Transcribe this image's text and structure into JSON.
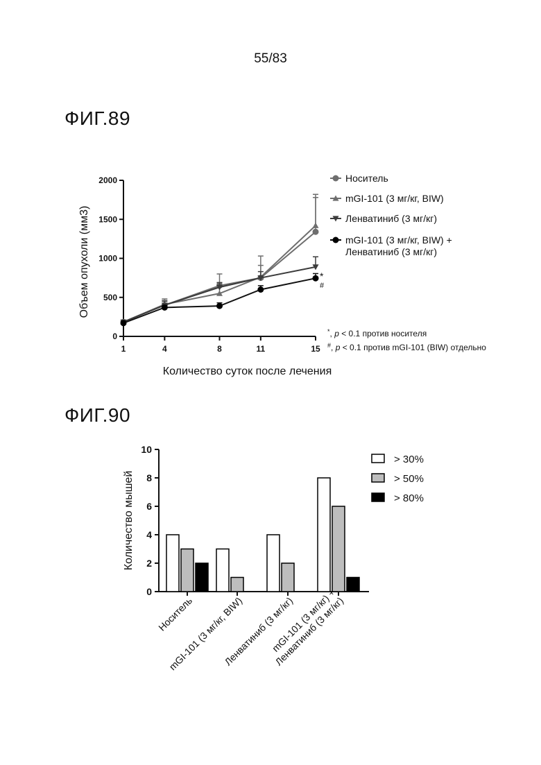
{
  "page_number": "55/83",
  "figures": {
    "fig89": {
      "label": "ФИГ.89"
    },
    "fig90": {
      "label": "ФИГ.90"
    }
  },
  "chart_data": [
    {
      "type": "line",
      "x": [
        1,
        4,
        8,
        11,
        15
      ],
      "xlabel": "Количество суток после лечения",
      "ylabel": "Объем опухоли (мм3)",
      "ylim": [
        0,
        2000
      ],
      "yticks": [
        0,
        500,
        1000,
        1500,
        2000
      ],
      "series": [
        {
          "name": "Носитель",
          "marker": "circle",
          "color": "#6e6e6e",
          "values": [
            185,
            400,
            650,
            750,
            1340
          ],
          "errors": [
            20,
            60,
            150,
            280,
            440
          ]
        },
        {
          "name": "mGI-101 (3 мг/кг, BIW)",
          "marker": "triangle-up",
          "color": "#6e6e6e",
          "values": [
            185,
            410,
            550,
            760,
            1420
          ],
          "errors": [
            20,
            70,
            130,
            150,
            400
          ]
        },
        {
          "name": "Ленватиниб (3 мг/кг)",
          "marker": "triangle-down",
          "color": "#3c3c3c",
          "values": [
            185,
            400,
            630,
            750,
            890
          ],
          "errors": [
            20,
            50,
            60,
            80,
            130
          ]
        },
        {
          "name": "mGI-101 (3 мг/кг, BIW) + Ленватиниб (3 мг/кг)",
          "legend_lines": [
            "mGI-101 (3 мг/кг, BIW) +",
            "Ленватиниб (3 мг/кг)"
          ],
          "marker": "circle-black",
          "color": "#111111",
          "values": [
            170,
            370,
            390,
            600,
            745
          ],
          "errors": [
            20,
            30,
            40,
            50,
            60
          ]
        }
      ],
      "significance": [
        "*",
        "#"
      ],
      "notes": [
        {
          "sym": "*",
          "p": "p",
          "text": " < 0.1 против носителя"
        },
        {
          "sym": "#",
          "p": "p",
          "text": " < 0.1 против mGI-101 (BIW) отдельно"
        }
      ],
      "legend_position": "right"
    },
    {
      "type": "bar",
      "categories": [
        "Носитель",
        "mGI-101 (3 мг/кг, BIW)",
        "Ленватиниб (3 мг/кг)",
        "mGI-101 (3 мг/кг) + Ленватиниб (3 мг/кг)"
      ],
      "category_lines": [
        [
          "Носитель"
        ],
        [
          "mGI-101 (3 мг/кг, BIW)"
        ],
        [
          "Ленватиниб (3 мг/кг)"
        ],
        [
          "mGI-101 (3 мг/кг) +",
          "Ленватиниб (3 мг/кг)"
        ]
      ],
      "ylabel": "Количество мышей",
      "ylim": [
        0,
        10
      ],
      "yticks": [
        0,
        2,
        4,
        6,
        8,
        10
      ],
      "series": [
        {
          "name": "> 30%",
          "color": "#ffffff",
          "values": [
            4,
            3,
            4,
            8
          ]
        },
        {
          "name": "> 50%",
          "color": "#bdbdbd",
          "values": [
            3,
            1,
            2,
            6
          ]
        },
        {
          "name": "> 80%",
          "color": "#000000",
          "values": [
            2,
            0,
            0,
            1
          ]
        }
      ],
      "legend_position": "top-right"
    }
  ]
}
